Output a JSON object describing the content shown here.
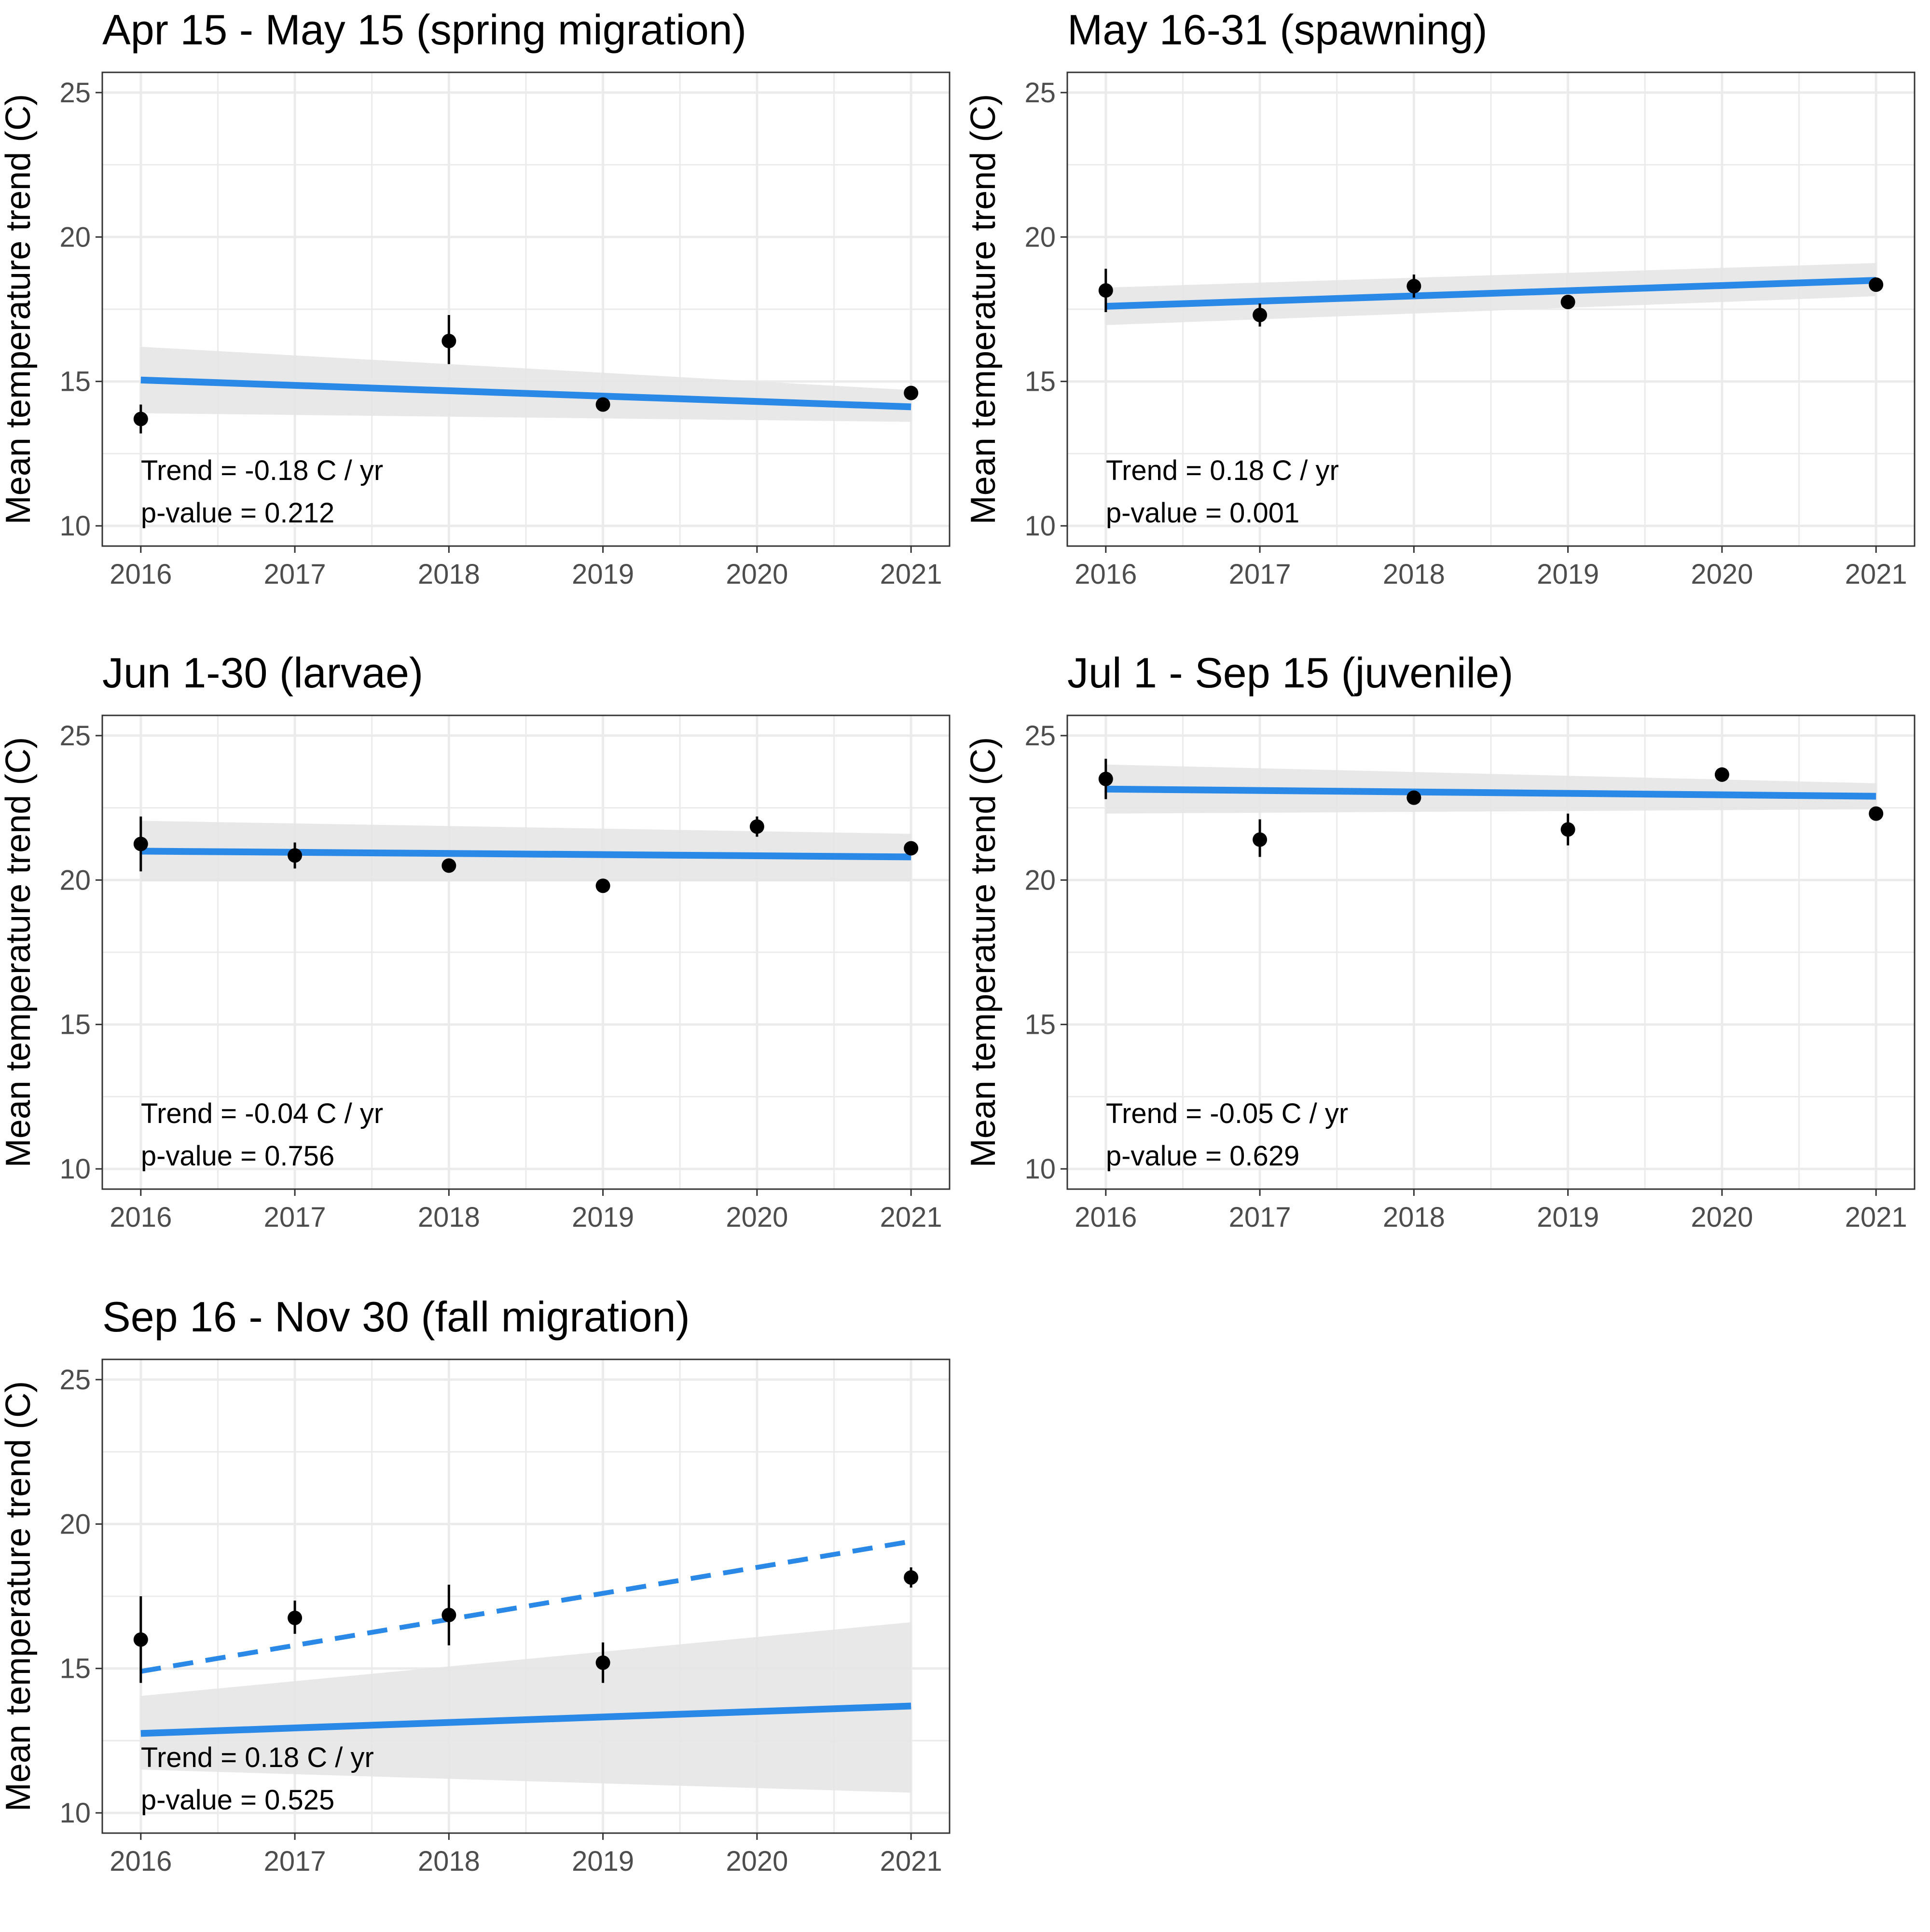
{
  "colors": {
    "trend_line": "#2a88e6",
    "confidence_band": "#e6e6e6",
    "points": "#000000",
    "grid": "#ebebeb",
    "axis_text": "#4d4d4d"
  },
  "chart_data": [
    {
      "type": "scatter",
      "title": "Apr 15 - May 15 (spring migration)",
      "ylabel": "Mean temperature trend (C)",
      "xlabel": "",
      "xlim": [
        2015.75,
        2021.25
      ],
      "ylim": [
        9.3,
        25.7
      ],
      "x_ticks": [
        "2016",
        "2017",
        "2018",
        "2019",
        "2020",
        "2021"
      ],
      "y_ticks": [
        "10",
        "15",
        "20",
        "25"
      ],
      "grid": true,
      "points": [
        {
          "x": 2016,
          "y": 13.7,
          "lo": 13.2,
          "hi": 14.2
        },
        {
          "x": 2018,
          "y": 16.4,
          "lo": 15.6,
          "hi": 17.3
        },
        {
          "x": 2019,
          "y": 14.2,
          "lo": 14.0,
          "hi": 14.4
        },
        {
          "x": 2021,
          "y": 14.6,
          "lo": 14.4,
          "hi": 14.8
        }
      ],
      "trend_line": {
        "x": [
          2016,
          2021
        ],
        "y": [
          15.05,
          14.12
        ],
        "style": "solid"
      },
      "band": {
        "x": [
          2016,
          2021
        ],
        "lo": [
          13.9,
          13.6
        ],
        "hi": [
          16.2,
          14.7
        ]
      },
      "trend_text": "Trend = -0.18 C / yr",
      "pvalue_text": "p-value = 0.212"
    },
    {
      "type": "scatter",
      "title": "May 16-31 (spawning)",
      "ylabel": "Mean temperature trend (C)",
      "xlabel": "",
      "xlim": [
        2015.75,
        2021.25
      ],
      "ylim": [
        9.3,
        25.7
      ],
      "x_ticks": [
        "2016",
        "2017",
        "2018",
        "2019",
        "2020",
        "2021"
      ],
      "y_ticks": [
        "10",
        "15",
        "20",
        "25"
      ],
      "grid": true,
      "points": [
        {
          "x": 2016,
          "y": 18.15,
          "lo": 17.4,
          "hi": 18.9
        },
        {
          "x": 2017,
          "y": 17.3,
          "lo": 16.9,
          "hi": 17.7
        },
        {
          "x": 2018,
          "y": 18.3,
          "lo": 17.9,
          "hi": 18.7
        },
        {
          "x": 2019,
          "y": 17.75,
          "lo": 17.6,
          "hi": 17.9
        },
        {
          "x": 2021,
          "y": 18.35,
          "lo": 18.2,
          "hi": 18.5
        }
      ],
      "trend_line": {
        "x": [
          2016,
          2021
        ],
        "y": [
          17.6,
          18.5
        ],
        "style": "solid"
      },
      "band": {
        "x": [
          2016,
          2021
        ],
        "lo": [
          16.95,
          17.95
        ],
        "hi": [
          18.25,
          19.1
        ]
      },
      "trend_text": "Trend = 0.18 C / yr",
      "pvalue_text": "p-value = 0.001"
    },
    {
      "type": "scatter",
      "title": "Jun 1-30 (larvae)",
      "ylabel": "Mean temperature trend (C)",
      "xlabel": "",
      "xlim": [
        2015.75,
        2021.25
      ],
      "ylim": [
        9.3,
        25.7
      ],
      "x_ticks": [
        "2016",
        "2017",
        "2018",
        "2019",
        "2020",
        "2021"
      ],
      "y_ticks": [
        "10",
        "15",
        "20",
        "25"
      ],
      "grid": true,
      "points": [
        {
          "x": 2016,
          "y": 21.25,
          "lo": 20.3,
          "hi": 22.2
        },
        {
          "x": 2017,
          "y": 20.85,
          "lo": 20.4,
          "hi": 21.3
        },
        {
          "x": 2018,
          "y": 20.5,
          "lo": 20.35,
          "hi": 20.65
        },
        {
          "x": 2019,
          "y": 19.8,
          "lo": 19.65,
          "hi": 19.95
        },
        {
          "x": 2020,
          "y": 21.85,
          "lo": 21.5,
          "hi": 22.2
        },
        {
          "x": 2021,
          "y": 21.1,
          "lo": 20.95,
          "hi": 21.25
        }
      ],
      "trend_line": {
        "x": [
          2016,
          2021
        ],
        "y": [
          21.0,
          20.8
        ],
        "style": "solid"
      },
      "band": {
        "x": [
          2016,
          2021
        ],
        "lo": [
          19.95,
          19.95
        ],
        "hi": [
          22.05,
          21.6
        ]
      },
      "trend_text": "Trend = -0.04 C / yr",
      "pvalue_text": "p-value = 0.756"
    },
    {
      "type": "scatter",
      "title": "Jul 1 - Sep 15 (juvenile)",
      "ylabel": "Mean temperature trend (C)",
      "xlabel": "",
      "xlim": [
        2015.75,
        2021.25
      ],
      "ylim": [
        9.3,
        25.7
      ],
      "x_ticks": [
        "2016",
        "2017",
        "2018",
        "2019",
        "2020",
        "2021"
      ],
      "y_ticks": [
        "10",
        "15",
        "20",
        "25"
      ],
      "grid": true,
      "points": [
        {
          "x": 2016,
          "y": 23.5,
          "lo": 22.8,
          "hi": 24.2
        },
        {
          "x": 2017,
          "y": 21.4,
          "lo": 20.8,
          "hi": 22.1
        },
        {
          "x": 2018,
          "y": 22.85,
          "lo": 22.7,
          "hi": 23.0
        },
        {
          "x": 2019,
          "y": 21.75,
          "lo": 21.2,
          "hi": 22.3
        },
        {
          "x": 2020,
          "y": 23.65,
          "lo": 23.4,
          "hi": 23.9
        },
        {
          "x": 2021,
          "y": 22.3,
          "lo": 22.15,
          "hi": 22.45
        }
      ],
      "trend_line": {
        "x": [
          2016,
          2021
        ],
        "y": [
          23.15,
          22.9
        ],
        "style": "solid"
      },
      "band": {
        "x": [
          2016,
          2021
        ],
        "lo": [
          22.3,
          22.45
        ],
        "hi": [
          24.0,
          23.35
        ]
      },
      "trend_text": "Trend = -0.05 C / yr",
      "pvalue_text": "p-value = 0.629"
    },
    {
      "type": "scatter",
      "title": "Sep 16 - Nov 30 (fall migration)",
      "ylabel": "Mean temperature trend (C)",
      "xlabel": "",
      "xlim": [
        2015.75,
        2021.25
      ],
      "ylim": [
        9.3,
        25.7
      ],
      "x_ticks": [
        "2016",
        "2017",
        "2018",
        "2019",
        "2020",
        "2021"
      ],
      "y_ticks": [
        "10",
        "15",
        "20",
        "25"
      ],
      "grid": true,
      "points": [
        {
          "x": 2016,
          "y": 16.0,
          "lo": 14.5,
          "hi": 17.5
        },
        {
          "x": 2017,
          "y": 16.75,
          "lo": 16.2,
          "hi": 17.35
        },
        {
          "x": 2018,
          "y": 16.85,
          "lo": 15.8,
          "hi": 17.9
        },
        {
          "x": 2019,
          "y": 15.2,
          "lo": 14.5,
          "hi": 15.9
        },
        {
          "x": 2021,
          "y": 18.15,
          "lo": 17.8,
          "hi": 18.5
        }
      ],
      "trend_line": {
        "x": [
          2016,
          2021
        ],
        "y": [
          12.75,
          13.7
        ],
        "style": "solid"
      },
      "dashed_line": {
        "x": [
          2016,
          2021
        ],
        "y": [
          14.9,
          19.4
        ],
        "style": "dashed"
      },
      "band": {
        "x": [
          2016,
          2021
        ],
        "lo": [
          11.5,
          10.7
        ],
        "hi": [
          14.05,
          16.6
        ]
      },
      "trend_text": "Trend = 0.18 C / yr",
      "pvalue_text": "p-value = 0.525"
    }
  ]
}
